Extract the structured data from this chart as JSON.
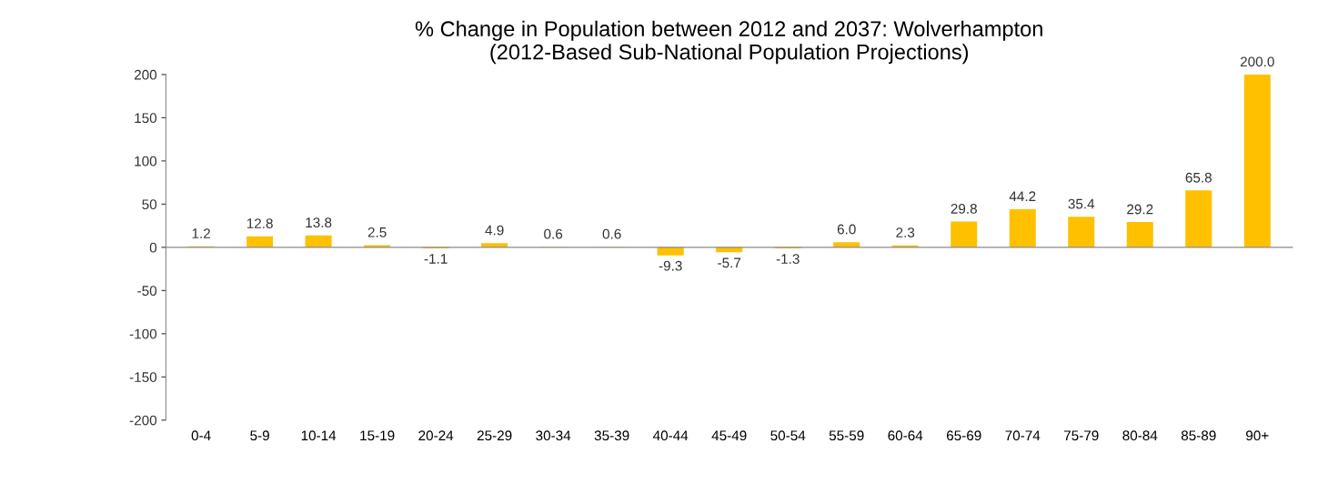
{
  "chart_data": {
    "type": "bar",
    "title": "% Change in Population between 2012 and 2037: Wolverhampton\n(2012-Based Sub-National Population Projections)",
    "categories": [
      "0-4",
      "5-9",
      "10-14",
      "15-19",
      "20-24",
      "25-29",
      "30-34",
      "35-39",
      "40-44",
      "45-49",
      "50-54",
      "55-59",
      "60-64",
      "65-69",
      "70-74",
      "75-79",
      "80-84",
      "85-89",
      "90+"
    ],
    "values": [
      1.2,
      12.8,
      13.8,
      2.5,
      -1.1,
      4.9,
      0.6,
      0.6,
      -9.3,
      -5.7,
      -1.3,
      6.0,
      2.3,
      29.8,
      44.2,
      35.4,
      29.2,
      65.8,
      200.0
    ],
    "value_labels": [
      "1.2",
      "12.8",
      "13.8",
      "2.5",
      "-1.1",
      "4.9",
      "0.6",
      "0.6",
      "-9.3",
      "-5.7",
      "-1.3",
      "6.0",
      "2.3",
      "29.8",
      "44.2",
      "35.4",
      "29.2",
      "65.8",
      "200.0"
    ],
    "color": "#ffc000",
    "ylim": [
      -200,
      200
    ],
    "yticks": [
      -200,
      -150,
      -100,
      -50,
      0,
      50,
      100,
      150,
      200
    ],
    "legend": false
  }
}
